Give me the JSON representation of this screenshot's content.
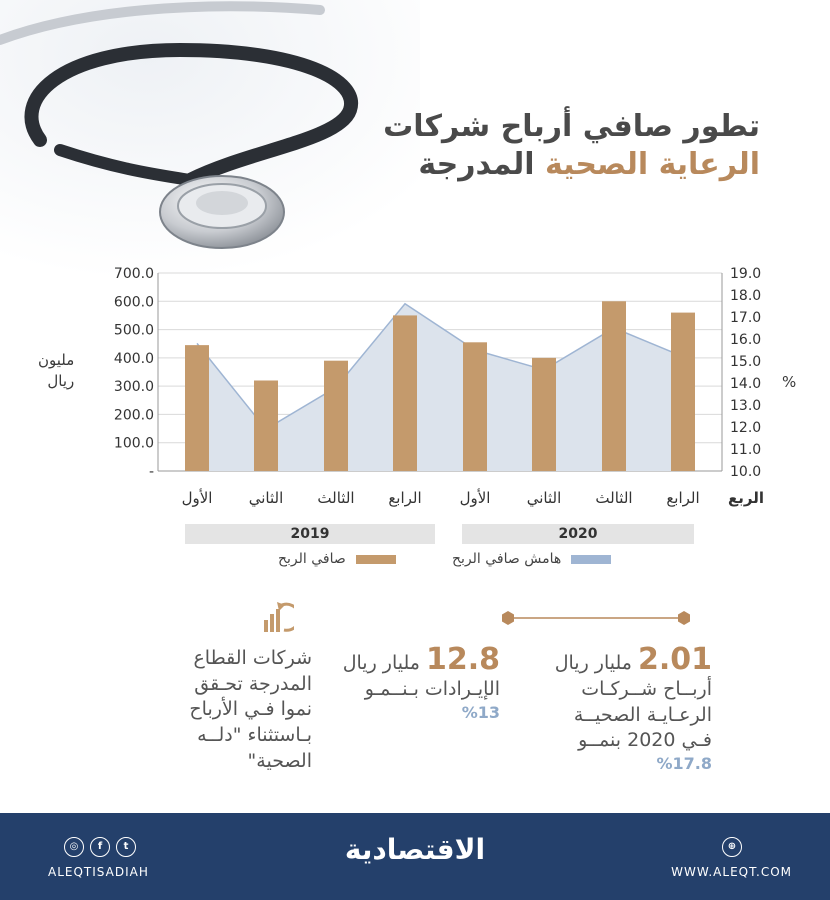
{
  "title": {
    "line1": "تطور صافي أرباح شركات",
    "line2_highlight": "الرعاية الصحية",
    "line2_rest": "المدرجة"
  },
  "axes": {
    "left_unit": [
      "مليون",
      "ريال"
    ],
    "right_unit": "%",
    "quarter_axis_label": "الربع"
  },
  "years": [
    "2019",
    "2020"
  ],
  "legend": {
    "bars": "صافي الربح",
    "area": "هامش صافي الربح"
  },
  "colors": {
    "bar": "#c49a6c",
    "area_fill": "#dce3ec",
    "area_line": "#9fb5d3",
    "accent": "#b8895c",
    "pct": "#8fa9c8",
    "footer": "#24406b"
  },
  "chart_data": {
    "type": "bar",
    "categories": [
      "الأول",
      "الثاني",
      "الثالث",
      "الرابع",
      "الأول",
      "الثاني",
      "الثالث",
      "الرابع"
    ],
    "series": [
      {
        "name": "صافي الربح",
        "type": "bar",
        "axis": "left",
        "values": [
          445,
          320,
          390,
          550,
          455,
          400,
          600,
          560
        ]
      },
      {
        "name": "هامش صافي الربح",
        "type": "area",
        "axis": "right",
        "values": [
          15.8,
          11.9,
          13.8,
          17.6,
          15.5,
          14.6,
          16.5,
          15.2
        ]
      }
    ],
    "y_left": {
      "ticks": [
        "-",
        "100.0",
        "200.0",
        "300.0",
        "400.0",
        "500.0",
        "600.0",
        "700.0"
      ],
      "ylim": [
        0,
        700
      ]
    },
    "y_right": {
      "ticks": [
        "10.0",
        "11.0",
        "12.0",
        "13.0",
        "14.0",
        "15.0",
        "16.0",
        "17.0",
        "18.0",
        "19.0"
      ],
      "ylim": [
        10,
        19
      ]
    },
    "grid": true
  },
  "stats": {
    "s1": {
      "big": "2.01",
      "unit": "مليار ريال",
      "lines": [
        "أربــاح شــركـات",
        "الرعـايـة الصحيــة",
        "فـي 2020 بنمــو"
      ],
      "pct": "%17.8"
    },
    "s2": {
      "big": "12.8",
      "unit": "مليار ريال",
      "lines": [
        "الإيـرادات بـنــمـو"
      ],
      "pct": "%13"
    }
  },
  "note": [
    "شركات القطاع",
    "المدرجة تحـقق",
    "نموا فـي الأرباح",
    "بـاستثناء \"دلــه",
    "الصحية\""
  ],
  "footer": {
    "brand": "الاقتصادية",
    "handle": "ALEQTISADIAH",
    "site": "WWW.ALEQT.COM"
  }
}
